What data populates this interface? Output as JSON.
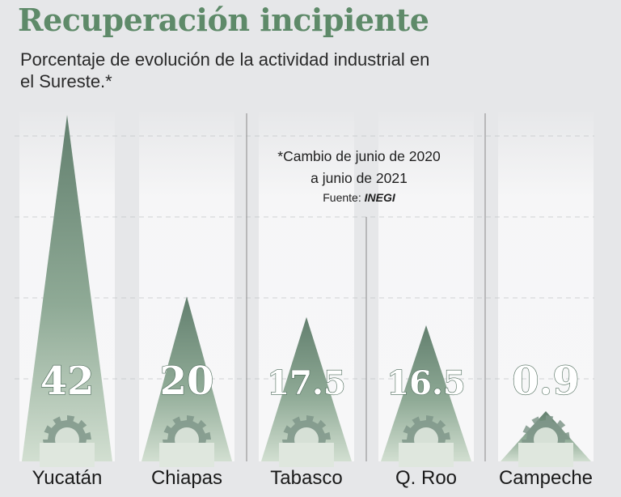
{
  "title": "Recuperación incipiente",
  "subtitle": "Porcentaje de evolución de la actividad industrial en el Sureste.*",
  "note": {
    "line1": "*Cambio de junio de 2020",
    "line2": "a junio de 2021",
    "source_label": "Fuente: ",
    "source": "INEGI"
  },
  "colors": {
    "title": "#5e8a69",
    "panel_light": "#f5f5f6",
    "cone_top": "#6f8d7c",
    "cone_bottom": "#d4e0d3",
    "gear": "#7f9789",
    "value_text": "#ffffff",
    "divider": "#9a9a9a"
  },
  "icons": {
    "gear": "gear-icon"
  },
  "chart_data": {
    "type": "bar",
    "title": "Recuperación incipiente",
    "subtitle": "Porcentaje de evolución de la actividad industrial en el Sureste.*",
    "categories": [
      "Yucatán",
      "Chiapas",
      "Tabasco",
      "Q. Roo",
      "Campeche"
    ],
    "values": [
      42,
      20,
      17.5,
      16.5,
      0.9
    ],
    "value_labels": [
      "42",
      "20",
      "17.5",
      "16.5",
      "0.9"
    ],
    "xlabel": "",
    "ylabel": "",
    "grid": true,
    "legend": "none"
  }
}
